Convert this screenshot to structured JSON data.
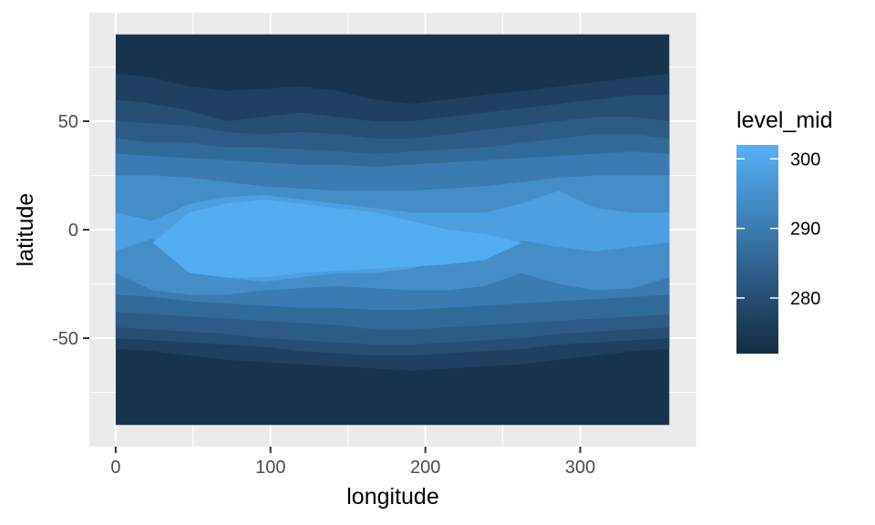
{
  "chart_data": {
    "type": "heatmap",
    "title": "",
    "xlabel": "longitude",
    "ylabel": "latitude",
    "xlim": [
      -17,
      375
    ],
    "ylim": [
      -100,
      100
    ],
    "x_ticks": [
      0,
      100,
      200,
      300
    ],
    "y_ticks": [
      -50,
      0,
      50
    ],
    "x_tick_labels": [
      "0",
      "100",
      "200",
      "300"
    ],
    "y_tick_labels": [
      "-50",
      "0",
      "50"
    ],
    "data_extent": {
      "lon": [
        0,
        357.5
      ],
      "lat": [
        -90,
        90
      ]
    },
    "grid": true,
    "legend": {
      "title": "level_mid",
      "position": "right",
      "range": [
        272,
        302
      ],
      "breaks": [
        280,
        290,
        300
      ],
      "break_labels": [
        "280",
        "290",
        "300"
      ],
      "colors": [
        "#132B43",
        "#56B1F7"
      ]
    },
    "bands": [
      {
        "level": 274,
        "north": [
          90,
          90,
          90,
          90,
          90,
          90,
          90,
          90,
          90,
          90,
          90,
          90,
          90,
          90,
          90,
          90
        ],
        "south": [
          -90,
          -90,
          -90,
          -90,
          -90,
          -90,
          -90,
          -90,
          -90,
          -90,
          -90,
          -90,
          -90,
          -90,
          -90,
          -90
        ]
      },
      {
        "level": 277,
        "north": [
          72,
          70,
          66,
          64,
          65,
          66,
          64,
          60,
          58,
          60,
          62,
          64,
          66,
          68,
          70,
          72
        ],
        "south": [
          -55,
          -56,
          -58,
          -60,
          -61,
          -62,
          -63,
          -64,
          -65,
          -64,
          -63,
          -62,
          -60,
          -58,
          -56,
          -55
        ]
      },
      {
        "level": 280,
        "north": [
          60,
          58,
          55,
          50,
          52,
          54,
          52,
          50,
          50,
          52,
          54,
          56,
          58,
          60,
          62,
          62
        ],
        "south": [
          -50,
          -51,
          -52,
          -53,
          -54,
          -56,
          -57,
          -58,
          -58,
          -57,
          -56,
          -55,
          -53,
          -52,
          -51,
          -50
        ]
      },
      {
        "level": 283,
        "north": [
          50,
          49,
          48,
          45,
          44,
          45,
          44,
          42,
          42,
          44,
          46,
          48,
          50,
          52,
          52,
          50
        ],
        "south": [
          -45,
          -46,
          -47,
          -48,
          -50,
          -51,
          -52,
          -53,
          -53,
          -52,
          -51,
          -50,
          -48,
          -47,
          -46,
          -45
        ]
      },
      {
        "level": 286,
        "north": [
          42,
          40,
          40,
          38,
          38,
          37,
          36,
          35,
          36,
          37,
          38,
          40,
          42,
          44,
          44,
          42
        ],
        "south": [
          -38,
          -39,
          -40,
          -41,
          -42,
          -43,
          -44,
          -46,
          -46,
          -45,
          -44,
          -43,
          -42,
          -41,
          -40,
          -39
        ]
      },
      {
        "level": 290,
        "north": [
          35,
          34,
          33,
          32,
          31,
          30,
          30,
          29,
          30,
          31,
          32,
          33,
          34,
          35,
          36,
          35
        ],
        "south": [
          -30,
          -31,
          -33,
          -34,
          -35,
          -36,
          -36,
          -37,
          -37,
          -36,
          -35,
          -34,
          -33,
          -32,
          -31,
          -30
        ]
      },
      {
        "level": 294,
        "north": [
          25,
          25,
          24,
          22,
          20,
          19,
          18,
          18,
          18,
          19,
          20,
          22,
          24,
          25,
          25,
          25
        ],
        "south": [
          -20,
          -28,
          -30,
          -30,
          -28,
          -27,
          -26,
          -27,
          -28,
          -28,
          -26,
          -20,
          -25,
          -28,
          -27,
          -22
        ]
      },
      {
        "level": 298,
        "north": [
          8,
          4,
          12,
          15,
          16,
          14,
          12,
          10,
          8,
          8,
          8,
          12,
          18,
          10,
          8,
          8
        ],
        "south": [
          -10,
          -4,
          -18,
          -22,
          -24,
          -22,
          -20,
          -20,
          -18,
          -14,
          -12,
          -5,
          -8,
          -10,
          -8,
          -6
        ]
      },
      {
        "level": 301,
        "north": [
          -6,
          -6,
          8,
          12,
          14,
          12,
          10,
          8,
          4,
          0,
          -2,
          -6,
          -6,
          -6,
          -6,
          -6
        ],
        "south": [
          -6,
          -6,
          -20,
          -22,
          -22,
          -20,
          -19,
          -18,
          -17,
          -16,
          -14,
          -6,
          -6,
          -6,
          -6,
          -6
        ]
      }
    ]
  }
}
